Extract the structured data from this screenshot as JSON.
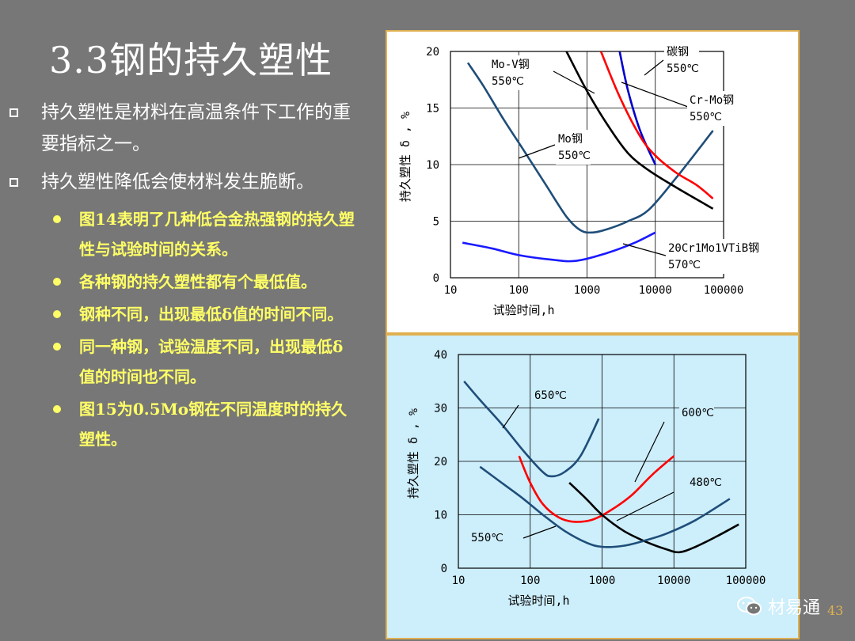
{
  "slide": {
    "title": "3.3钢的持久塑性",
    "bullets": [
      "持久塑性是材料在高温条件下工作的重要指标之一。",
      "持久塑性降低会使材料发生脆断。"
    ],
    "sub_bullets": [
      "图14表明了几种低合金热强钢的持久塑性与试验时间的关系。",
      "各种钢的持久塑性都有个最低值。",
      "钢种不同，出现最低δ值的时间不同。",
      "同一种钢，试验温度不同，出现最低δ值的时间也不同。",
      "图15为0.5Mo钢在不同温度时的持久塑性。"
    ],
    "page_number": "43",
    "watermark": "材易通",
    "icon": "wechat-icon"
  },
  "chart_data": [
    {
      "type": "line",
      "title": "",
      "xlabel": "试验时间,h",
      "ylabel": "持久塑性 δ , %",
      "xscale": "log",
      "xlim": [
        10,
        100000
      ],
      "ylim": [
        0,
        20
      ],
      "xticks": [
        "10",
        "100",
        "1000",
        "10000",
        "100000"
      ],
      "yticks": [
        "0",
        "5",
        "10",
        "15",
        "20"
      ],
      "grid": true,
      "series": [
        {
          "name": "Mo-V钢 550℃",
          "color": "#1f4e79",
          "x": [
            18,
            30,
            60,
            120,
            250,
            500,
            800,
            1200,
            2000,
            4000,
            8000,
            20000,
            70000
          ],
          "y": [
            19,
            17,
            14,
            11.2,
            8.2,
            5.4,
            4.2,
            4.0,
            4.3,
            5.0,
            6.0,
            8.8,
            13
          ]
        },
        {
          "name": "碳钢 550℃",
          "color": "#0000cc",
          "x": [
            3000,
            4000,
            6000,
            10000
          ],
          "y": [
            20,
            16.5,
            13,
            10
          ]
        },
        {
          "name": "Cr-Mo钢 550℃",
          "color": "#ff0000",
          "x": [
            1600,
            3000,
            6000,
            10000,
            20000,
            40000,
            70000
          ],
          "y": [
            20,
            16,
            12.5,
            10.8,
            9.3,
            8.2,
            7.0
          ]
        },
        {
          "name": "Mo钢 550℃",
          "color": "#000000",
          "x": [
            500,
            1000,
            2000,
            4000,
            8000,
            20000,
            70000
          ],
          "y": [
            20,
            16.5,
            13.5,
            11,
            9.5,
            8.0,
            6.1
          ]
        },
        {
          "name": "20Cr1Mo1VTiB钢 570℃",
          "color": "#1a1aff",
          "x": [
            15,
            40,
            100,
            300,
            700,
            2000,
            5000,
            10000
          ],
          "y": [
            3.1,
            2.6,
            2.0,
            1.6,
            1.5,
            2.2,
            3.1,
            4.0
          ]
        }
      ],
      "annotations": [
        {
          "text": "Mo-V钢",
          "text2": "550℃"
        },
        {
          "text": "碳钢",
          "text2": "550℃"
        },
        {
          "text": "Cr-Mo钢",
          "text2": "550℃"
        },
        {
          "text": "Mo钢",
          "text2": "550℃"
        },
        {
          "text": "20Cr1Mo1VTiB钢",
          "text2": "570℃"
        }
      ]
    },
    {
      "type": "line",
      "title": "",
      "xlabel": "试验时间,h",
      "ylabel": "持久塑性 δ , %",
      "xscale": "log",
      "xlim": [
        10,
        100000
      ],
      "ylim": [
        0,
        40
      ],
      "xticks": [
        "10",
        "100",
        "1000",
        "10000",
        "100000"
      ],
      "yticks": [
        "0",
        "10",
        "20",
        "30",
        "40"
      ],
      "grid": true,
      "series": [
        {
          "name": "650℃",
          "color": "#1f4e79",
          "x": [
            12,
            20,
            40,
            80,
            150,
            200,
            300,
            500,
            900
          ],
          "y": [
            35,
            31.5,
            27,
            22,
            18,
            17.2,
            18,
            21,
            28
          ]
        },
        {
          "name": "600℃",
          "color": "#ff0000",
          "x": [
            70,
            100,
            150,
            250,
            400,
            700,
            1200,
            2500,
            5000,
            10000
          ],
          "y": [
            21,
            16,
            12,
            9.5,
            8.7,
            9.0,
            10.5,
            13.5,
            17.5,
            21
          ]
        },
        {
          "name": "480℃",
          "color": "#000000",
          "x": [
            350,
            600,
            1000,
            2000,
            4000,
            8000,
            12000,
            20000,
            40000,
            80000
          ],
          "y": [
            16,
            13,
            10,
            7,
            5,
            3.5,
            3.0,
            4.0,
            6.0,
            8.2
          ]
        },
        {
          "name": "550℃",
          "color": "#1f4e79",
          "x": [
            20,
            40,
            80,
            150,
            300,
            600,
            1000,
            2000,
            4000,
            8000,
            20000,
            60000
          ],
          "y": [
            19,
            16,
            13,
            10,
            7,
            4.8,
            4.0,
            4.2,
            5.2,
            6.5,
            9.0,
            13
          ]
        }
      ],
      "annotations": [
        {
          "text": "650℃"
        },
        {
          "text": "600℃"
        },
        {
          "text": "480℃"
        },
        {
          "text": "550℃"
        }
      ]
    }
  ]
}
